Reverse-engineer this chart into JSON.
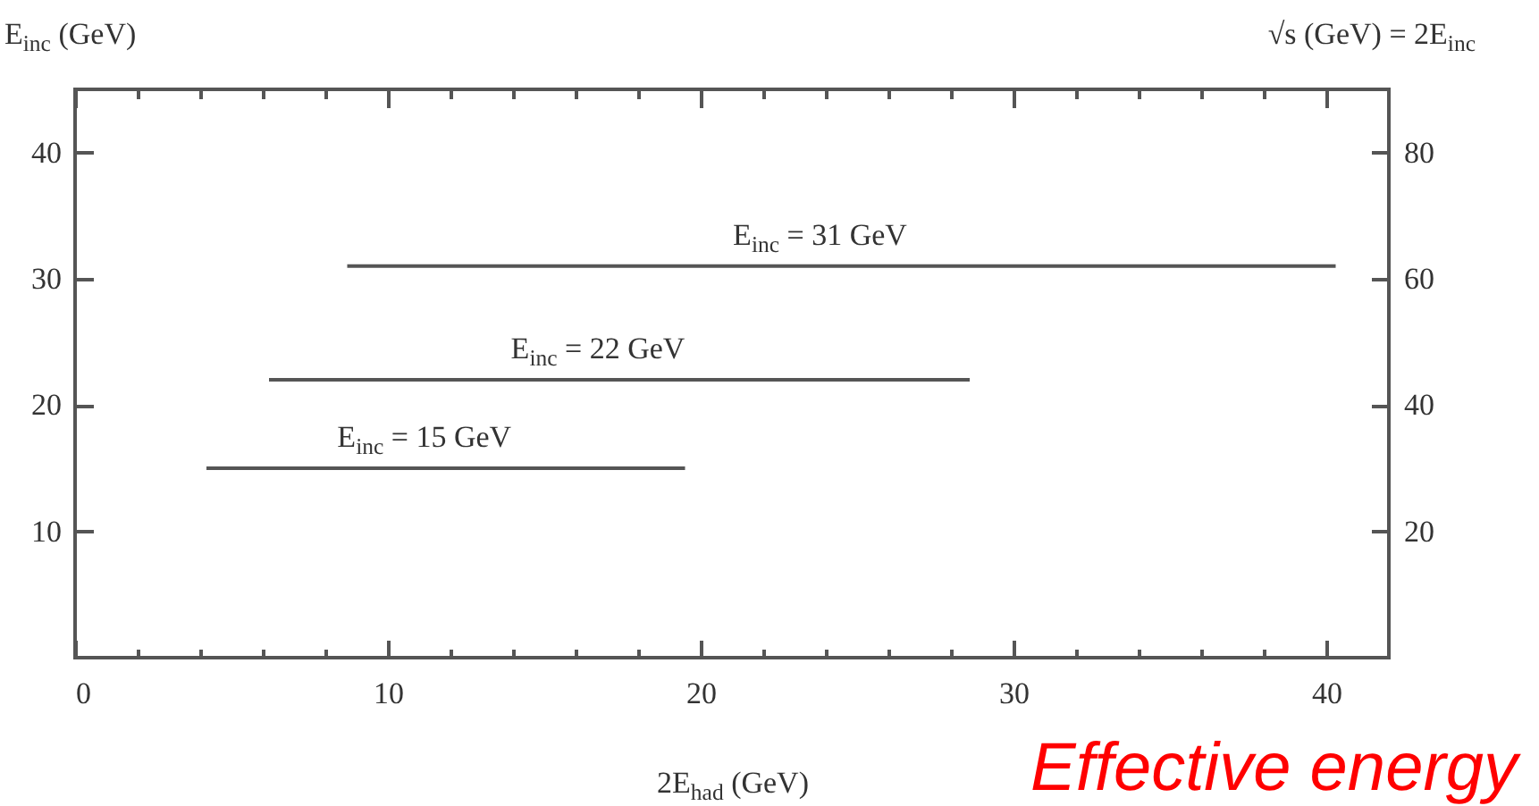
{
  "chart_data": {
    "type": "line",
    "xlabel": "2E$_{had}$ (GeV)",
    "ylabel": "E$_{inc}$ (GeV)",
    "y2label": "√s (GeV) = 2E$_{inc}$",
    "xlim": [
      0,
      42
    ],
    "ylim": [
      0,
      45
    ],
    "y2lim": [
      0,
      90
    ],
    "xticks": [
      0,
      {
        "value": 2,
        "label": null
      },
      {
        "value": 4,
        "label": null
      },
      {
        "value": 6,
        "label": null
      },
      {
        "value": 8,
        "label": null
      },
      10,
      {
        "value": 12,
        "label": null
      },
      {
        "value": 14,
        "label": null
      },
      {
        "value": 16,
        "label": null
      },
      {
        "value": 18,
        "label": null
      },
      20,
      {
        "value": 22,
        "label": null
      },
      {
        "value": 24,
        "label": null
      },
      {
        "value": 26,
        "label": null
      },
      {
        "value": 28,
        "label": null
      },
      30,
      {
        "value": 32,
        "label": null
      },
      {
        "value": 34,
        "label": null
      },
      {
        "value": 36,
        "label": null
      },
      {
        "value": 38,
        "label": null
      },
      40
    ],
    "yticks": [
      10,
      20,
      30,
      40
    ],
    "y2ticks": [
      20,
      40,
      60,
      80
    ],
    "grid": false,
    "series": [
      {
        "x": [
          4.2,
          19.5
        ],
        "values": [
          15,
          15
        ],
        "color": "#555555"
      },
      {
        "x": [
          6.2,
          28.6
        ],
        "values": [
          22,
          22
        ],
        "color": "#555555"
      },
      {
        "x": [
          8.7,
          40.3
        ],
        "values": [
          31,
          31
        ],
        "color": "#555555"
      }
    ],
    "annotations": [
      "E$_{inc}$ = 15 GeV",
      "E$_{inc}$ = 22 GeV",
      "E$_{inc}$ = 31 GeV",
      "Effective energy"
    ]
  }
}
